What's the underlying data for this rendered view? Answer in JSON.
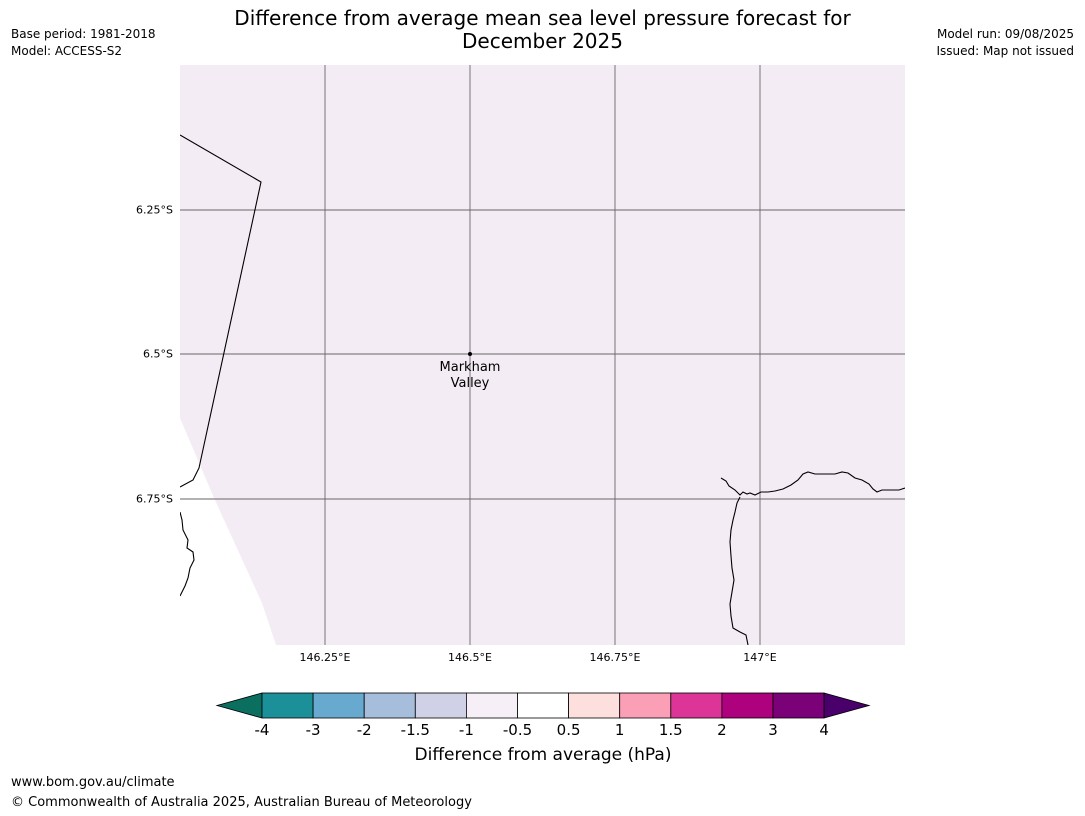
{
  "header": {
    "title_line1": "Difference from average mean sea level pressure forecast for",
    "title_line2": "December 2025",
    "base_period": "Base period: 1981-2018",
    "model": "Model: ACCESS-S2",
    "model_run": "Model run: 09/08/2025",
    "issued": "Issued: Map not issued"
  },
  "map": {
    "lat_labels": [
      "6.25°S",
      "6.5°S",
      "6.75°S"
    ],
    "lon_labels": [
      "146.25°E",
      "146.5°E",
      "146.75°E",
      "147°E"
    ],
    "place": {
      "name_line1": "Markham",
      "name_line2": "Valley"
    },
    "fill_color": "#f4ecf4",
    "fill_category": "-0.5 to 0.5 band (near average)"
  },
  "colorbar": {
    "title": "Difference from average (hPa)",
    "tick_labels": [
      "-4",
      "-3",
      "-2",
      "-1.5",
      "-1",
      "-0.5",
      "0.5",
      "1",
      "1.5",
      "2",
      "3",
      "4"
    ],
    "colors": {
      "below_min": "#0b6f60",
      "bins": [
        "#1c9099",
        "#67a9cf",
        "#a6bddb",
        "#d0d1e6",
        "#f6eff7",
        "#ffffff",
        "#fde0dd",
        "#fa9fb5",
        "#dd3497",
        "#ae017e",
        "#7a0177"
      ],
      "above_max": "#49006a"
    }
  },
  "footer": {
    "url": "www.bom.gov.au/climate",
    "copyright": "© Commonwealth of Australia 2025, Australian Bureau of Meteorology"
  }
}
